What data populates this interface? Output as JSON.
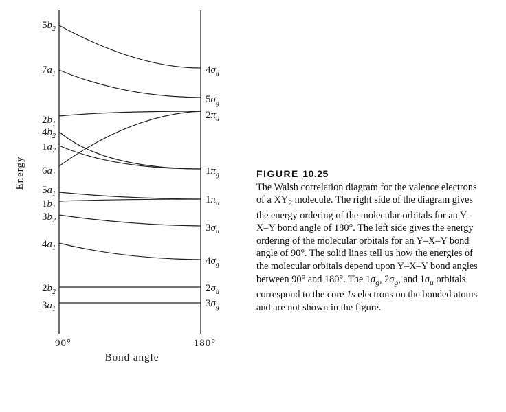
{
  "diagram": {
    "y_axis_label": "Energy",
    "x_axis_label": "Bond angle",
    "left_tick": "90°",
    "right_tick": "180°",
    "left_labels": [
      {
        "id": "5b2",
        "num": "5",
        "letter": "b",
        "sub": "2"
      },
      {
        "id": "7a1",
        "num": "7",
        "letter": "a",
        "sub": "1"
      },
      {
        "id": "2b1",
        "num": "2",
        "letter": "b",
        "sub": "1"
      },
      {
        "id": "4b2",
        "num": "4",
        "letter": "b",
        "sub": "2"
      },
      {
        "id": "1a2",
        "num": "1",
        "letter": "a",
        "sub": "2"
      },
      {
        "id": "6a1",
        "num": "6",
        "letter": "a",
        "sub": "1"
      },
      {
        "id": "5a1",
        "num": "5",
        "letter": "a",
        "sub": "1"
      },
      {
        "id": "1b1",
        "num": "1",
        "letter": "b",
        "sub": "1"
      },
      {
        "id": "3b2",
        "num": "3",
        "letter": "b",
        "sub": "2"
      },
      {
        "id": "4a1",
        "num": "4",
        "letter": "a",
        "sub": "1"
      },
      {
        "id": "2b2",
        "num": "2",
        "letter": "b",
        "sub": "2"
      },
      {
        "id": "3a1",
        "num": "3",
        "letter": "a",
        "sub": "1"
      }
    ],
    "right_labels": [
      {
        "id": "4su",
        "num": "4",
        "letter": "σ",
        "sub": "u"
      },
      {
        "id": "5sg",
        "num": "5",
        "letter": "σ",
        "sub": "g"
      },
      {
        "id": "2pu",
        "num": "2",
        "letter": "π",
        "sub": "u"
      },
      {
        "id": "1pg",
        "num": "1",
        "letter": "π",
        "sub": "g"
      },
      {
        "id": "1pu",
        "num": "1",
        "letter": "π",
        "sub": "u"
      },
      {
        "id": "3su",
        "num": "3",
        "letter": "σ",
        "sub": "u"
      },
      {
        "id": "4sg",
        "num": "4",
        "letter": "σ",
        "sub": "g"
      },
      {
        "id": "2su",
        "num": "2",
        "letter": "σ",
        "sub": "u"
      },
      {
        "id": "3sg",
        "num": "3",
        "letter": "σ",
        "sub": "g"
      }
    ],
    "correlations": [
      {
        "from": "5b2",
        "to": "4su"
      },
      {
        "from": "7a1",
        "to": "5sg"
      },
      {
        "from": "2b1",
        "to": "2pu"
      },
      {
        "from": "6a1",
        "to": "2pu"
      },
      {
        "from": "4b2",
        "to": "1pg"
      },
      {
        "from": "1a2",
        "to": "1pg"
      },
      {
        "from": "5a1",
        "to": "1pu"
      },
      {
        "from": "1b1",
        "to": "1pu"
      },
      {
        "from": "3b2",
        "to": "3su"
      },
      {
        "from": "4a1",
        "to": "4sg"
      },
      {
        "from": "2b2",
        "to": "2su"
      },
      {
        "from": "3a1",
        "to": "3sg"
      }
    ]
  },
  "caption": {
    "figure": "FIGURE",
    "number": "10.25",
    "p1": "The Walsh correlation diagram for the valence electrons of a XY",
    "p1_sub": "2",
    "p2": " molecule. The right side of the diagram gives the energy ordering of the molecular orbitals for an Y–X–Y bond angle of 180°. The left side gives the energy ordering of the molecular orbitals for an Y–X–Y bond angle of 90°. The solid lines tell us how the energies of the molecular orbitals depend upon Y–X–Y bond angles between 90° and 180°. The 1",
    "sym": "σ",
    "g": "g",
    "u": "u",
    "p3": ", 2",
    "p4": ", and 1",
    "p5": " orbitals correspond to the core ",
    "p6": "1s",
    "p7": " electrons on the bonded atoms and are not shown in the figure."
  }
}
